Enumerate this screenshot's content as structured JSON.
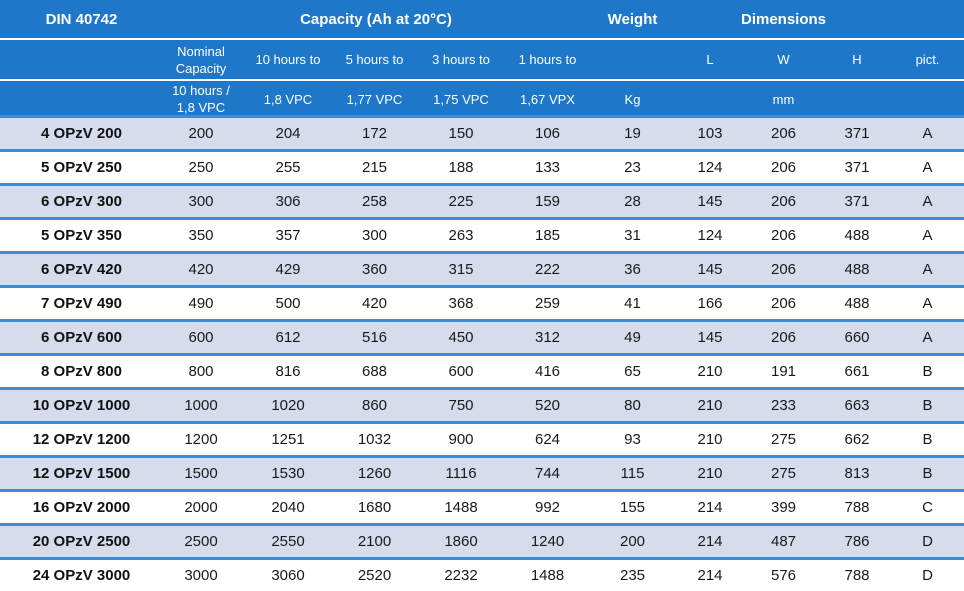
{
  "header1": {
    "din": "DIN 40742",
    "capacity": "Capacity (Ah at 20°C)",
    "weight": "Weight",
    "dimensions": "Dimensions"
  },
  "header2": {
    "nominal": "Nominal Capacity",
    "h10": "10 hours to",
    "h5": "5 hours to",
    "h3": "3 hours to",
    "h1": "1 hours to",
    "L": "L",
    "W": "W",
    "H": "H",
    "pict": "pict."
  },
  "header3": {
    "nominal": "10 hours / 1,8 VPC",
    "v10": "1,8 VPC",
    "v5": "1,77 VPC",
    "v3": "1,75 VPC",
    "v1": "1,67 VPX",
    "kg": "Kg",
    "mm": "mm"
  },
  "rows": [
    [
      "4 OPzV 200",
      "200",
      "204",
      "172",
      "150",
      "106",
      "19",
      "103",
      "206",
      "371",
      "A"
    ],
    [
      "5 OPzV 250",
      "250",
      "255",
      "215",
      "188",
      "133",
      "23",
      "124",
      "206",
      "371",
      "A"
    ],
    [
      "6 OPzV 300",
      "300",
      "306",
      "258",
      "225",
      "159",
      "28",
      "145",
      "206",
      "371",
      "A"
    ],
    [
      "5 OPzV 350",
      "350",
      "357",
      "300",
      "263",
      "185",
      "31",
      "124",
      "206",
      "488",
      "A"
    ],
    [
      "6 OPzV 420",
      "420",
      "429",
      "360",
      "315",
      "222",
      "36",
      "145",
      "206",
      "488",
      "A"
    ],
    [
      "7 OPzV 490",
      "490",
      "500",
      "420",
      "368",
      "259",
      "41",
      "166",
      "206",
      "488",
      "A"
    ],
    [
      "6 OPzV 600",
      "600",
      "612",
      "516",
      "450",
      "312",
      "49",
      "145",
      "206",
      "660",
      "A"
    ],
    [
      "8 OPzV 800",
      "800",
      "816",
      "688",
      "600",
      "416",
      "65",
      "210",
      "191",
      "661",
      "B"
    ],
    [
      "10 OPzV 1000",
      "1000",
      "1020",
      "860",
      "750",
      "520",
      "80",
      "210",
      "233",
      "663",
      "B"
    ],
    [
      "12 OPzV 1200",
      "1200",
      "1251",
      "1032",
      "900",
      "624",
      "93",
      "210",
      "275",
      "662",
      "B"
    ],
    [
      "12 OPzV 1500",
      "1500",
      "1530",
      "1260",
      "1116",
      "744",
      "115",
      "210",
      "275",
      "813",
      "B"
    ],
    [
      "16 OPzV 2000",
      "2000",
      "2040",
      "1680",
      "1488",
      "992",
      "155",
      "214",
      "399",
      "788",
      "C"
    ],
    [
      "20 OPzV 2500",
      "2500",
      "2550",
      "2100",
      "1860",
      "1240",
      "200",
      "214",
      "487",
      "786",
      "D"
    ],
    [
      "24 OPzV 3000",
      "3000",
      "3060",
      "2520",
      "2232",
      "1488",
      "235",
      "214",
      "576",
      "788",
      "D"
    ]
  ],
  "colors": {
    "header": "#1f77c9",
    "separator": "#3f8bd4",
    "row_alt": "#d6dcec"
  }
}
